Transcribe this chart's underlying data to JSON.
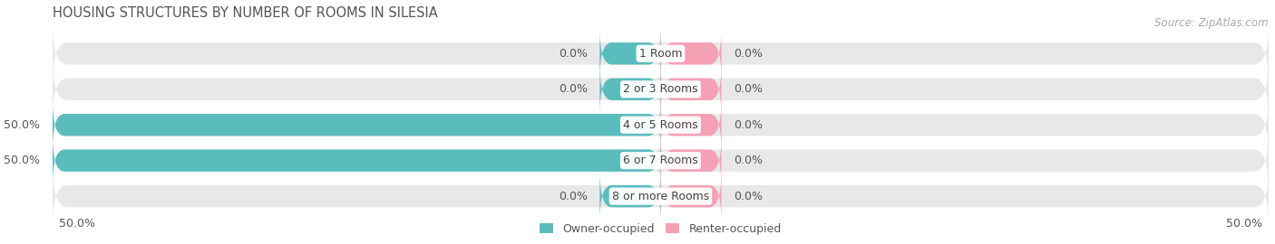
{
  "title": "HOUSING STRUCTURES BY NUMBER OF ROOMS IN SILESIA",
  "source": "Source: ZipAtlas.com",
  "categories": [
    "1 Room",
    "2 or 3 Rooms",
    "4 or 5 Rooms",
    "6 or 7 Rooms",
    "8 or more Rooms"
  ],
  "owner_values": [
    0.0,
    0.0,
    50.0,
    50.0,
    0.0
  ],
  "renter_values": [
    0.0,
    0.0,
    0.0,
    0.0,
    0.0
  ],
  "owner_color": "#5bbcbe",
  "renter_color": "#f4a0b5",
  "bar_bg_color": "#e8e8e8",
  "stub_size": 5.0,
  "bar_height": 0.62,
  "xlim_left": -50,
  "xlim_right": 50,
  "x_left_label": "50.0%",
  "x_right_label": "50.0%",
  "title_fontsize": 10.5,
  "label_fontsize": 9,
  "category_fontsize": 9,
  "source_fontsize": 8.5,
  "legend_labels": [
    "Owner-occupied",
    "Renter-occupied"
  ],
  "bg_color": "#f5f5f5"
}
